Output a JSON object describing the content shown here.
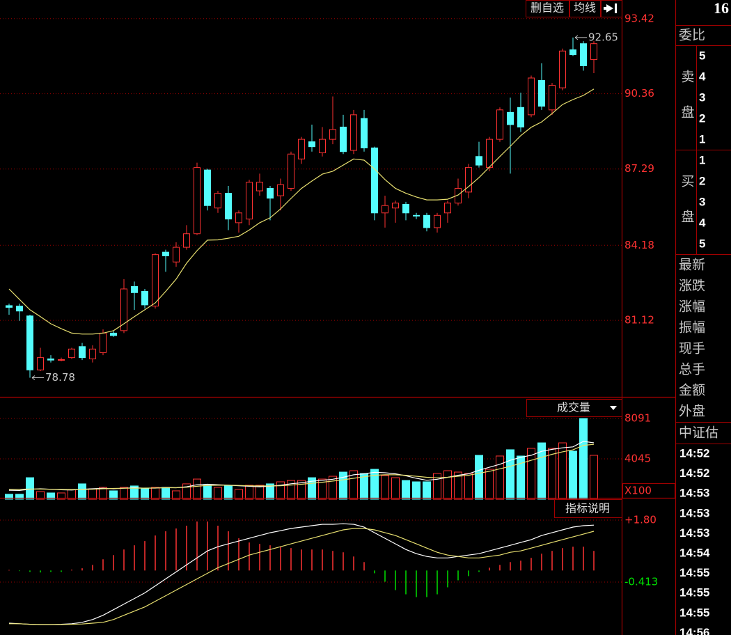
{
  "toolbar": {
    "buttons": [
      "删自选",
      "均线"
    ]
  },
  "chart_data": [
    {
      "type": "candlestick",
      "up_color": "#ff3232",
      "down_color": "#54fcfc",
      "axis_color": "#ff3232",
      "ylim": [
        78.0,
        94.18
      ],
      "yticks": [
        93.42,
        90.36,
        87.29,
        84.18,
        81.12
      ],
      "grid": true,
      "open": [
        81.72,
        81.7,
        81.3,
        79.1,
        79.55,
        79.5,
        79.6,
        80.05,
        79.55,
        79.8,
        80.6,
        80.7,
        82.5,
        82.3,
        81.7,
        83.9,
        83.5,
        84.1,
        84.65,
        87.25,
        85.7,
        86.3,
        85.1,
        85.25,
        86.4,
        86.5,
        86.2,
        86.5,
        87.7,
        88.4,
        87.95,
        88.5,
        89.0,
        88.05,
        89.35,
        88.15,
        85.5,
        85.7,
        85.85,
        85.4,
        85.4,
        84.9,
        85.5,
        85.9,
        86.35,
        87.8,
        87.35,
        88.5,
        89.6,
        89.8,
        89.5,
        90.9,
        89.7,
        90.6,
        92.15,
        92.4,
        91.75
      ],
      "high": [
        81.8,
        81.8,
        81.35,
        80.0,
        79.7,
        79.6,
        80.0,
        80.2,
        80.1,
        80.75,
        80.7,
        82.8,
        82.7,
        82.4,
        83.85,
        84.0,
        84.3,
        85.0,
        87.55,
        87.3,
        86.4,
        86.6,
        85.6,
        86.85,
        87.1,
        86.6,
        86.9,
        88.0,
        88.6,
        89.1,
        89.0,
        90.25,
        89.5,
        89.7,
        89.7,
        88.2,
        86.2,
        86.0,
        85.95,
        85.5,
        85.5,
        85.5,
        86.0,
        86.9,
        87.5,
        88.4,
        88.6,
        89.8,
        90.2,
        90.4,
        91.1,
        91.6,
        90.8,
        92.2,
        92.65,
        92.5,
        92.5
      ],
      "low": [
        81.35,
        81.1,
        78.78,
        79.05,
        79.4,
        79.45,
        79.55,
        79.5,
        79.4,
        79.7,
        80.45,
        80.6,
        81.55,
        81.6,
        81.6,
        83.1,
        83.3,
        84.0,
        84.6,
        85.6,
        85.5,
        84.8,
        84.7,
        85.0,
        86.2,
        85.2,
        85.6,
        86.4,
        87.5,
        88.0,
        87.8,
        88.3,
        87.9,
        87.9,
        88.0,
        85.2,
        84.9,
        85.1,
        85.2,
        85.25,
        84.75,
        84.7,
        85.1,
        85.8,
        86.1,
        87.35,
        87.2,
        88.4,
        87.1,
        88.8,
        89.4,
        89.7,
        89.5,
        90.5,
        91.9,
        91.3,
        91.2
      ],
      "close": [
        81.65,
        81.5,
        79.1,
        79.6,
        79.5,
        79.52,
        79.95,
        79.6,
        79.95,
        80.6,
        80.5,
        82.4,
        82.25,
        81.75,
        83.8,
        83.75,
        84.1,
        84.65,
        87.35,
        85.8,
        86.3,
        85.25,
        85.5,
        86.75,
        86.75,
        86.1,
        86.65,
        87.9,
        88.5,
        88.2,
        88.5,
        88.9,
        88.0,
        89.5,
        88.15,
        85.5,
        85.8,
        85.9,
        85.5,
        85.38,
        84.9,
        85.4,
        85.9,
        86.5,
        87.35,
        87.45,
        88.5,
        89.7,
        89.1,
        89.0,
        91.0,
        89.85,
        90.7,
        92.1,
        91.95,
        91.5,
        92.4
      ],
      "lines": [
        {
          "color": "#e8e070",
          "values": [
            82.4,
            81.97,
            81.55,
            81.27,
            80.98,
            80.78,
            80.6,
            80.56,
            80.56,
            80.6,
            80.7,
            80.98,
            81.27,
            81.55,
            81.83,
            82.3,
            82.8,
            83.45,
            83.96,
            84.39,
            84.4,
            84.47,
            84.55,
            84.8,
            85.1,
            85.3,
            85.66,
            86.09,
            86.5,
            86.8,
            87.08,
            87.2,
            87.45,
            87.7,
            87.65,
            87.29,
            86.86,
            86.5,
            86.3,
            86.15,
            86.03,
            86.03,
            86.06,
            86.23,
            86.57,
            86.94,
            87.37,
            87.8,
            88.22,
            88.65,
            88.99,
            89.21,
            89.55,
            89.92,
            90.12,
            90.29,
            90.55
          ]
        }
      ],
      "annotations": [
        {
          "value": 92.65,
          "label": "92.65"
        },
        {
          "value": 78.78,
          "label": "78.78"
        }
      ]
    },
    {
      "type": "volume",
      "title": "成交量",
      "unit_label": "X100",
      "up_color": "#ff3232",
      "down_color": "#54fcfc",
      "axis_color": "#ff3232",
      "ylim": [
        0,
        9700
      ],
      "yticks": [
        8091,
        4045
      ],
      "grid": true,
      "values": [
        500,
        500,
        2160,
        770,
        630,
        630,
        980,
        1540,
        1050,
        1190,
        840,
        1190,
        1330,
        1050,
        1190,
        1190,
        840,
        1540,
        2020,
        1400,
        1190,
        1330,
        980,
        1400,
        1400,
        1540,
        1745,
        1880,
        1880,
        2160,
        2020,
        2300,
        2720,
        2860,
        2580,
        3000,
        2370,
        2160,
        1880,
        1745,
        1745,
        2580,
        2860,
        2720,
        2580,
        4400,
        3000,
        4330,
        4960,
        4330,
        5100,
        5650,
        5100,
        5650,
        4820,
        8091,
        4400
      ],
      "lines": [
        {
          "color": "#ffffff",
          "values": [
            900,
            880,
            1000,
            1050,
            1000,
            950,
            920,
            1000,
            1050,
            1100,
            1050,
            1100,
            1150,
            1100,
            1120,
            1180,
            1150,
            1250,
            1450,
            1500,
            1450,
            1400,
            1350,
            1300,
            1250,
            1300,
            1400,
            1550,
            1650,
            1800,
            1900,
            2000,
            2200,
            2450,
            2550,
            2700,
            2650,
            2550,
            2350,
            2100,
            1900,
            2000,
            2200,
            2400,
            2550,
            2900,
            3200,
            3500,
            3900,
            4200,
            4400,
            4800,
            5000,
            5150,
            5250,
            5800,
            5650
          ]
        },
        {
          "color": "#e8e070",
          "values": [
            1000,
            1000,
            1020,
            1020,
            1000,
            980,
            970,
            980,
            1000,
            1050,
            1080,
            1100,
            1100,
            1120,
            1130,
            1150,
            1150,
            1200,
            1300,
            1380,
            1400,
            1400,
            1380,
            1350,
            1330,
            1330,
            1350,
            1420,
            1500,
            1600,
            1700,
            1820,
            1950,
            2100,
            2250,
            2400,
            2450,
            2450,
            2400,
            2300,
            2200,
            2150,
            2200,
            2300,
            2400,
            2600,
            2800,
            3050,
            3300,
            3600,
            3900,
            4200,
            4500,
            4750,
            4950,
            5400,
            5500
          ]
        }
      ]
    },
    {
      "type": "macd",
      "button": "指标说明",
      "up_color": "#ff3232",
      "down_color": "#00e000",
      "axis_color": "#ff3232",
      "ylim": [
        -2.303,
        2.47
      ],
      "yticks": [
        {
          "value": 1.8,
          "label": "+1.80"
        },
        -0.413
      ],
      "grid": true,
      "values": [
        0.02,
        -0.02,
        -0.05,
        -0.07,
        -0.05,
        -0.05,
        0.03,
        0.08,
        0.2,
        0.4,
        0.55,
        0.75,
        0.9,
        1.05,
        1.25,
        1.4,
        1.5,
        1.6,
        1.75,
        1.75,
        1.6,
        1.4,
        1.15,
        1.0,
        0.95,
        0.9,
        0.85,
        0.8,
        0.75,
        0.75,
        0.75,
        0.7,
        0.65,
        0.5,
        0.3,
        -0.1,
        -0.4,
        -0.7,
        -0.85,
        -0.95,
        -0.95,
        -0.85,
        -0.6,
        -0.35,
        -0.2,
        -0.05,
        0.1,
        0.2,
        0.3,
        0.35,
        0.45,
        0.6,
        0.7,
        0.8,
        0.85,
        0.85,
        0.7
      ],
      "lines": [
        {
          "color": "#ffffff",
          "values": [
            -1.88,
            -1.9,
            -1.92,
            -1.93,
            -1.93,
            -1.92,
            -1.9,
            -1.85,
            -1.75,
            -1.6,
            -1.4,
            -1.2,
            -1.0,
            -0.8,
            -0.55,
            -0.3,
            -0.05,
            0.2,
            0.45,
            0.7,
            0.85,
            0.95,
            1.05,
            1.15,
            1.25,
            1.35,
            1.42,
            1.5,
            1.55,
            1.6,
            1.65,
            1.65,
            1.67,
            1.65,
            1.55,
            1.35,
            1.15,
            0.95,
            0.75,
            0.6,
            0.5,
            0.45,
            0.45,
            0.5,
            0.55,
            0.6,
            0.7,
            0.8,
            0.9,
            1.0,
            1.1,
            1.25,
            1.35,
            1.45,
            1.55,
            1.6,
            1.62
          ]
        },
        {
          "color": "#e8e070",
          "values": [
            -1.9,
            -1.9,
            -1.92,
            -1.93,
            -1.93,
            -1.93,
            -1.92,
            -1.91,
            -1.88,
            -1.85,
            -1.75,
            -1.6,
            -1.45,
            -1.3,
            -1.1,
            -0.9,
            -0.7,
            -0.5,
            -0.3,
            -0.1,
            0.1,
            0.25,
            0.4,
            0.55,
            0.65,
            0.75,
            0.85,
            0.95,
            1.05,
            1.15,
            1.25,
            1.35,
            1.45,
            1.5,
            1.5,
            1.45,
            1.35,
            1.25,
            1.1,
            0.95,
            0.8,
            0.65,
            0.55,
            0.5,
            0.45,
            0.45,
            0.5,
            0.55,
            0.65,
            0.7,
            0.8,
            0.9,
            1.0,
            1.1,
            1.2,
            1.3,
            1.4
          ]
        }
      ]
    }
  ],
  "sidebar": {
    "code": "16",
    "ratio": "委比",
    "sell": {
      "label": "卖盘",
      "levels": [
        "5",
        "4",
        "3",
        "2",
        "1"
      ]
    },
    "buy": {
      "label": "买盘",
      "levels": [
        "1",
        "2",
        "3",
        "4",
        "5"
      ]
    },
    "fields": [
      "最新",
      "涨跌",
      "涨幅",
      "振幅",
      "现手",
      "总手",
      "金额",
      "外盘"
    ],
    "valuation": "中证估",
    "times": [
      "14:52",
      "14:52",
      "14:53",
      "14:53",
      "14:53",
      "14:54",
      "14:55",
      "14:55",
      "14:55",
      "14:56"
    ]
  }
}
